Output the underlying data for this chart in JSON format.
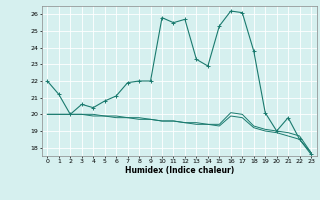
{
  "title": "",
  "xlabel": "Humidex (Indice chaleur)",
  "bg_color": "#d6f0ef",
  "line_color": "#1a7a6e",
  "grid_color": "#ffffff",
  "xlim": [
    -0.5,
    23.5
  ],
  "ylim": [
    17.5,
    26.5
  ],
  "yticks": [
    18,
    19,
    20,
    21,
    22,
    23,
    24,
    25,
    26
  ],
  "xticks": [
    0,
    1,
    2,
    3,
    4,
    5,
    6,
    7,
    8,
    9,
    10,
    11,
    12,
    13,
    14,
    15,
    16,
    17,
    18,
    19,
    20,
    21,
    22,
    23
  ],
  "main_line": {
    "x": [
      0,
      1,
      2,
      3,
      4,
      5,
      6,
      7,
      8,
      9,
      10,
      11,
      12,
      13,
      14,
      15,
      16,
      17,
      18,
      19,
      20,
      21,
      22,
      23
    ],
    "y": [
      22.0,
      21.2,
      20.0,
      20.6,
      20.4,
      20.8,
      21.1,
      21.9,
      22.0,
      22.0,
      25.8,
      25.5,
      25.7,
      23.3,
      22.9,
      25.3,
      26.2,
      26.1,
      23.8,
      20.1,
      19.0,
      19.8,
      18.5,
      17.6
    ]
  },
  "line2": {
    "x": [
      0,
      1,
      2,
      3,
      4,
      5,
      6,
      7,
      8,
      9,
      10,
      11,
      12,
      13,
      14,
      15,
      16,
      17,
      18,
      19,
      20,
      21,
      22,
      23
    ],
    "y": [
      20.0,
      20.0,
      20.0,
      20.0,
      19.9,
      19.9,
      19.8,
      19.8,
      19.7,
      19.7,
      19.6,
      19.6,
      19.5,
      19.5,
      19.4,
      19.4,
      20.1,
      20.0,
      19.3,
      19.1,
      19.0,
      18.9,
      18.7,
      17.7
    ]
  },
  "line3": {
    "x": [
      0,
      1,
      2,
      3,
      4,
      5,
      6,
      7,
      8,
      9,
      10,
      11,
      12,
      13,
      14,
      15,
      16,
      17,
      18,
      19,
      20,
      21,
      22,
      23
    ],
    "y": [
      20.0,
      20.0,
      20.0,
      20.0,
      20.0,
      19.9,
      19.9,
      19.8,
      19.8,
      19.7,
      19.6,
      19.6,
      19.5,
      19.4,
      19.4,
      19.3,
      19.9,
      19.8,
      19.2,
      19.0,
      18.9,
      18.7,
      18.5,
      17.7
    ]
  }
}
